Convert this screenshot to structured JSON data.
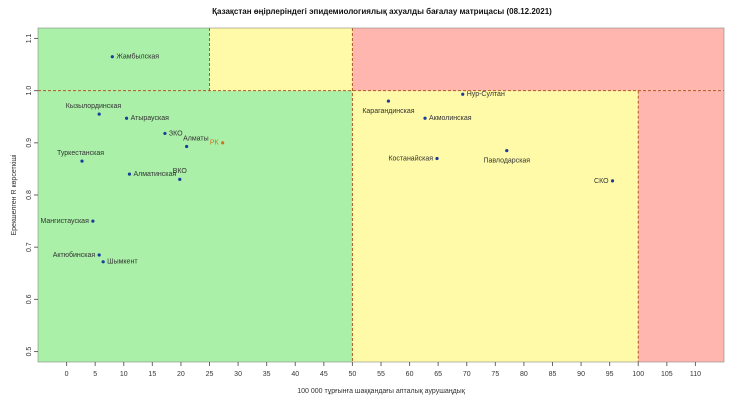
{
  "chart_data": {
    "type": "scatter",
    "title": "Қазақстан өңірлеріндегі эпидемиологиялық ахуалды бағалау матрицасы  (08.12.2021)",
    "x_label": "100 000 тұрғынға шаққандағы апталық аурушаңдық",
    "y_label": "Ерекшелген R көрсеткіші",
    "xlim": [
      -5,
      115
    ],
    "ylim": [
      0.48,
      1.12
    ],
    "xticks": [
      0,
      5,
      10,
      15,
      20,
      25,
      30,
      35,
      40,
      45,
      50,
      55,
      60,
      65,
      70,
      75,
      80,
      85,
      90,
      95,
      100,
      105,
      110
    ],
    "yticks": [
      0.5,
      0.6,
      0.7,
      0.8,
      0.9,
      {
        "value": 1,
        "label": "1.0"
      },
      1.1
    ],
    "zones": [
      {
        "x": [
          null,
          50
        ],
        "y": [
          null,
          1
        ],
        "color": "#aaf0a8"
      },
      {
        "x": [
          null,
          25
        ],
        "y": [
          1,
          null
        ],
        "color": "#aaf0a8"
      },
      {
        "x": [
          25,
          50
        ],
        "y": [
          1,
          null
        ],
        "color": "#fffaa8"
      },
      {
        "x": [
          50,
          100
        ],
        "y": [
          null,
          1
        ],
        "color": "#fffaa8"
      },
      {
        "x": [
          50,
          null
        ],
        "y": [
          1,
          null
        ],
        "color": "#ffb6ae"
      },
      {
        "x": [
          100,
          null
        ],
        "y": [
          null,
          1
        ],
        "color": "#ffb6ae"
      }
    ],
    "thresholds_x": [
      25,
      50,
      100
    ],
    "threshold_y": 1,
    "threshold_color": "#b05a20",
    "labels": [
      "Жамбылская",
      "Кызылординская",
      "Атырауская",
      "ЗКО",
      "Алматы",
      "РК",
      "Туркестанская",
      "Алматинская",
      "ВКО",
      "Мангистауская",
      "Актюбинская",
      "Шымкент",
      "Карагандинская",
      "Нур-Султан",
      "Акмолинская",
      "Костанайская",
      "Павлодарская",
      "СКО"
    ],
    "x": [
      8,
      5.7,
      10.5,
      17.2,
      21,
      27.3,
      2.7,
      11,
      19.8,
      4.6,
      5.7,
      6.4,
      56.3,
      69.3,
      62.7,
      64.8,
      77,
      95.5
    ],
    "y": [
      1.065,
      0.955,
      0.947,
      0.918,
      0.893,
      0.9,
      0.865,
      0.84,
      0.83,
      0.75,
      0.685,
      0.672,
      0.98,
      0.993,
      0.947,
      0.87,
      0.885,
      0.827
    ],
    "colors": [
      "#1a3c9c",
      "#1a3c9c",
      "#1a3c9c",
      "#1a3c9c",
      "#1a3c9c",
      "#d07020",
      "#1a3c9c",
      "#1a3c9c",
      "#1a3c9c",
      "#1a3c9c",
      "#1a3c9c",
      "#1a3c9c",
      "#1a3c9c",
      "#1a3c9c",
      "#1a3c9c",
      "#1a3c9c",
      "#1a3c9c",
      "#1a3c9c"
    ]
  }
}
